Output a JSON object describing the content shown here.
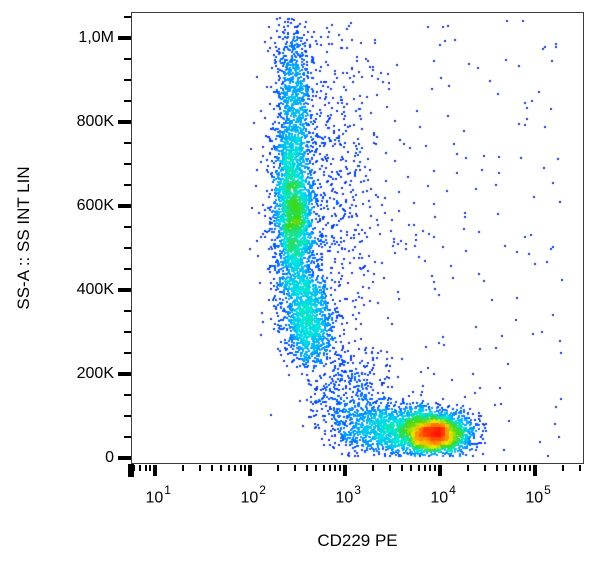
{
  "chart_data": {
    "type": "scatter",
    "subtype": "flow-cytometry pseudocolor density dot plot",
    "title": "",
    "xlabel": "CD229 PE",
    "ylabel": "SS-A :: SS INT LIN",
    "x_scale": "log10",
    "x_range_log10": [
      0.75,
      5.52
    ],
    "x_tick_exponents": [
      1,
      2,
      3,
      4,
      5
    ],
    "x_minor_ticks": "log sub-decades 2-9",
    "y_scale": "linear",
    "y_range": [
      -14000,
      1062000
    ],
    "y_ticks": {
      "values": [
        0,
        200000,
        400000,
        600000,
        800000,
        1000000
      ],
      "labels": [
        "0",
        "200K",
        "400K",
        "600K",
        "800K",
        "1,0M"
      ]
    },
    "y_minor_step": 50000,
    "grid": false,
    "legend": false,
    "colors": {
      "axis": "#000000",
      "plot_border": "#3c3c3c",
      "background": "#ffffff",
      "density_colormap": [
        "#2828a8",
        "#003cff",
        "#00a0ff",
        "#00e8e0",
        "#3cd814",
        "#f0e600",
        "#ff8000",
        "#ff1400"
      ]
    },
    "populations": [
      {
        "name": "high-SS stripe upper (granulocytes top)",
        "count": 750,
        "x_log_mean": 2.47,
        "x_log_sd": 0.095,
        "y_mean": 870000,
        "y_sd": 90000,
        "y_clip": [
          700000,
          1055000
        ],
        "tilt": 0.02
      },
      {
        "name": "high-SS stripe core (granulocytes)",
        "count": 2400,
        "x_log_mean": 2.46,
        "x_log_sd": 0.1,
        "y_mean": 580000,
        "y_sd": 115000,
        "y_clip": [
          395000,
          790000
        ],
        "tilt": 0.02
      },
      {
        "name": "stripe fringe scatter",
        "count": 350,
        "x_log_mean": 2.47,
        "x_log_sd": 0.19,
        "y_mean": 600000,
        "y_sd": 170000,
        "y_clip": [
          280000,
          1050000
        ]
      },
      {
        "name": "stripe lower bend",
        "count": 1200,
        "x_log_mean": 2.6,
        "x_log_sd": 0.13,
        "y_mean": 330000,
        "y_sd": 60000,
        "y_clip": [
          215000,
          430000
        ],
        "tilt": 0.045
      },
      {
        "name": "diffuse CD229-mid high-SS tail",
        "count": 550,
        "x_log_mean": 2.88,
        "x_log_sd": 0.27,
        "y_mean": 620000,
        "y_sd": 240000,
        "x_clip": [
          2.52,
          3.95
        ],
        "y_clip": [
          90000,
          1050000
        ]
      },
      {
        "name": "bridge scatter",
        "count": 380,
        "x_log_mean": 3.05,
        "x_log_sd": 0.22,
        "y_mean": 150000,
        "y_sd": 65000,
        "x_clip": [
          2.6,
          3.75
        ],
        "y_clip": [
          40000,
          330000
        ]
      },
      {
        "name": "CD229-bright low-SS population",
        "count": 2800,
        "x_log_mean": 3.95,
        "x_log_sd": 0.18,
        "y_mean": 58000,
        "y_sd": 24000,
        "x_clip": [
          3.2,
          4.5
        ],
        "y_clip": [
          4000,
          165000
        ]
      },
      {
        "name": "CD229-mid low-SS shoulder",
        "count": 1100,
        "x_log_mean": 3.45,
        "x_log_sd": 0.27,
        "y_mean": 72000,
        "y_sd": 32000,
        "x_clip": [
          2.85,
          4.15
        ],
        "y_clip": [
          4000,
          195000
        ]
      },
      {
        "name": "sparse background events",
        "count": 240,
        "x_log_uniform": [
          2.2,
          5.3
        ],
        "y_uniform": [
          2000,
          1045000
        ]
      }
    ]
  }
}
